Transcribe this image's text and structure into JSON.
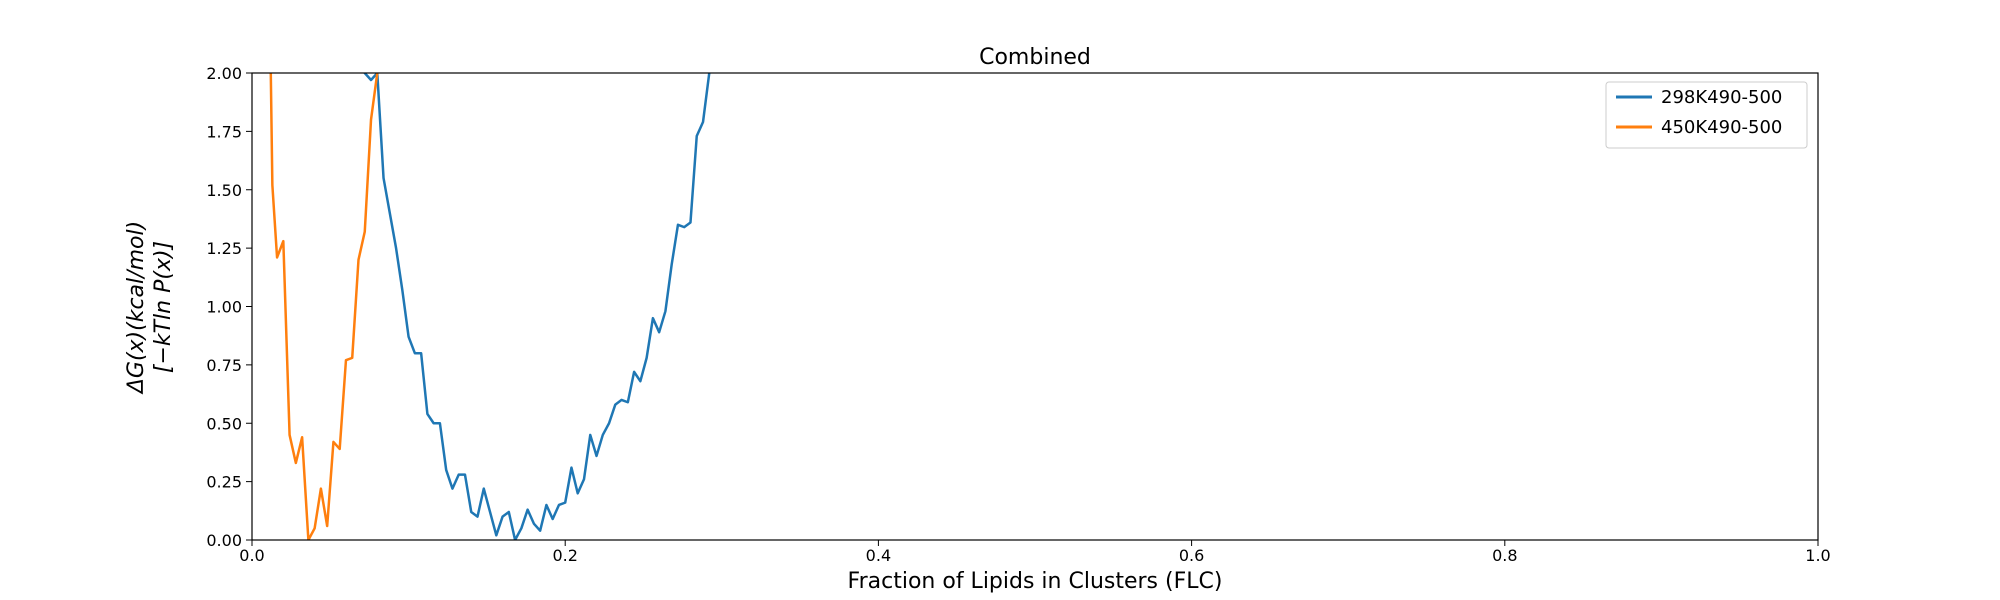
{
  "chart_data": {
    "type": "line",
    "title": "Combined",
    "xlabel": "Fraction of Lipids in Clusters (FLC)",
    "ylabel_lines": [
      "ΔG(x)(kcal/mol)",
      "[−kTln P(x)]"
    ],
    "xlim": [
      0.0,
      1.0
    ],
    "ylim": [
      0.0,
      2.0
    ],
    "x_ticks": [
      "0.0",
      "0.2",
      "0.4",
      "0.6",
      "0.8",
      "1.0"
    ],
    "y_ticks": [
      "0.00",
      "0.25",
      "0.50",
      "0.75",
      "1.00",
      "1.25",
      "1.50",
      "1.75",
      "2.00"
    ],
    "grid": false,
    "legend_position": "top-right",
    "series": [
      {
        "name": "298K490-500",
        "color": "#1f77b4",
        "x": [
          0.072,
          0.076,
          0.08,
          0.084,
          0.088,
          0.092,
          0.096,
          0.1,
          0.104,
          0.108,
          0.112,
          0.116,
          0.12,
          0.124,
          0.128,
          0.132,
          0.136,
          0.14,
          0.144,
          0.148,
          0.152,
          0.156,
          0.16,
          0.164,
          0.168,
          0.172,
          0.176,
          0.18,
          0.184,
          0.188,
          0.192,
          0.196,
          0.2,
          0.204,
          0.208,
          0.212,
          0.216,
          0.22,
          0.224,
          0.228,
          0.232,
          0.236,
          0.24,
          0.244,
          0.248,
          0.252,
          0.256,
          0.26,
          0.264,
          0.268,
          0.272,
          0.276,
          0.28,
          0.284,
          0.288,
          0.292
        ],
        "y": [
          2.0,
          1.97,
          2.0,
          1.55,
          1.4,
          1.25,
          1.07,
          0.87,
          0.8,
          0.8,
          0.54,
          0.5,
          0.5,
          0.3,
          0.22,
          0.28,
          0.28,
          0.12,
          0.1,
          0.22,
          0.12,
          0.02,
          0.1,
          0.12,
          0.0,
          0.05,
          0.13,
          0.07,
          0.04,
          0.15,
          0.09,
          0.15,
          0.16,
          0.31,
          0.2,
          0.26,
          0.45,
          0.36,
          0.45,
          0.5,
          0.58,
          0.6,
          0.59,
          0.72,
          0.68,
          0.78,
          0.95,
          0.89,
          0.98,
          1.18,
          1.35,
          1.34,
          1.36,
          1.73,
          1.79,
          2.0
        ]
      },
      {
        "name": "450K490-500",
        "color": "#ff7f0e",
        "x": [
          0.012,
          0.013,
          0.016,
          0.02,
          0.024,
          0.028,
          0.032,
          0.036,
          0.04,
          0.044,
          0.048,
          0.052,
          0.056,
          0.06,
          0.064,
          0.068,
          0.072,
          0.076,
          0.08
        ],
        "y": [
          2.0,
          1.52,
          1.21,
          1.28,
          0.45,
          0.33,
          0.44,
          0.0,
          0.05,
          0.22,
          0.06,
          0.42,
          0.39,
          0.77,
          0.78,
          1.2,
          1.32,
          1.8,
          2.0
        ]
      }
    ]
  }
}
